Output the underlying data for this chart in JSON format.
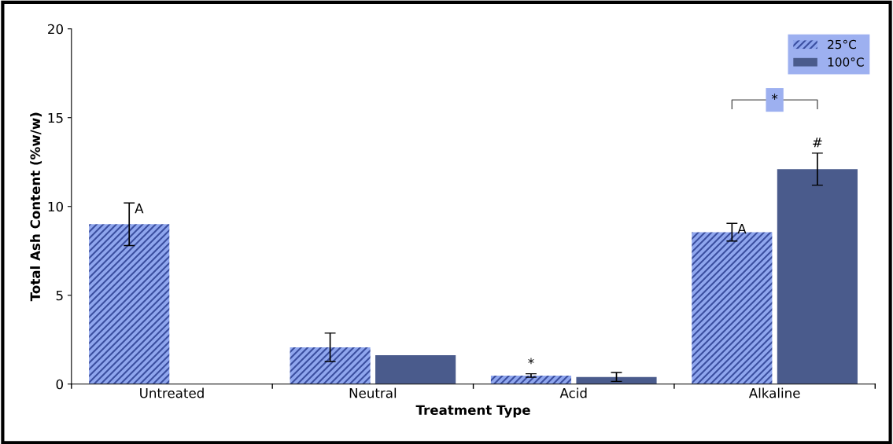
{
  "chart_data": {
    "type": "bar",
    "xlabel": "Treatment Type",
    "ylabel": "Total Ash Content (%w/w)",
    "categories": [
      "Untreated",
      "Neutral",
      "Acid",
      "Alkaline"
    ],
    "series": [
      {
        "name": "25°C",
        "color": "#8fa6ee",
        "values": [
          9.0,
          2.07,
          0.48,
          8.55
        ],
        "errors": [
          1.2,
          0.8,
          0.1,
          0.5
        ]
      },
      {
        "name": "100°C",
        "color": "#4a5b8c",
        "values": [
          null,
          1.63,
          0.4,
          12.1
        ],
        "errors": [
          null,
          null,
          0.25,
          0.9
        ]
      }
    ],
    "ylim": [
      0,
      20
    ],
    "yticks": [
      0,
      5,
      10,
      15,
      20
    ],
    "grid": false,
    "legend": "top right",
    "annotations": [
      "A",
      "*",
      "A",
      "#",
      "*"
    ]
  }
}
